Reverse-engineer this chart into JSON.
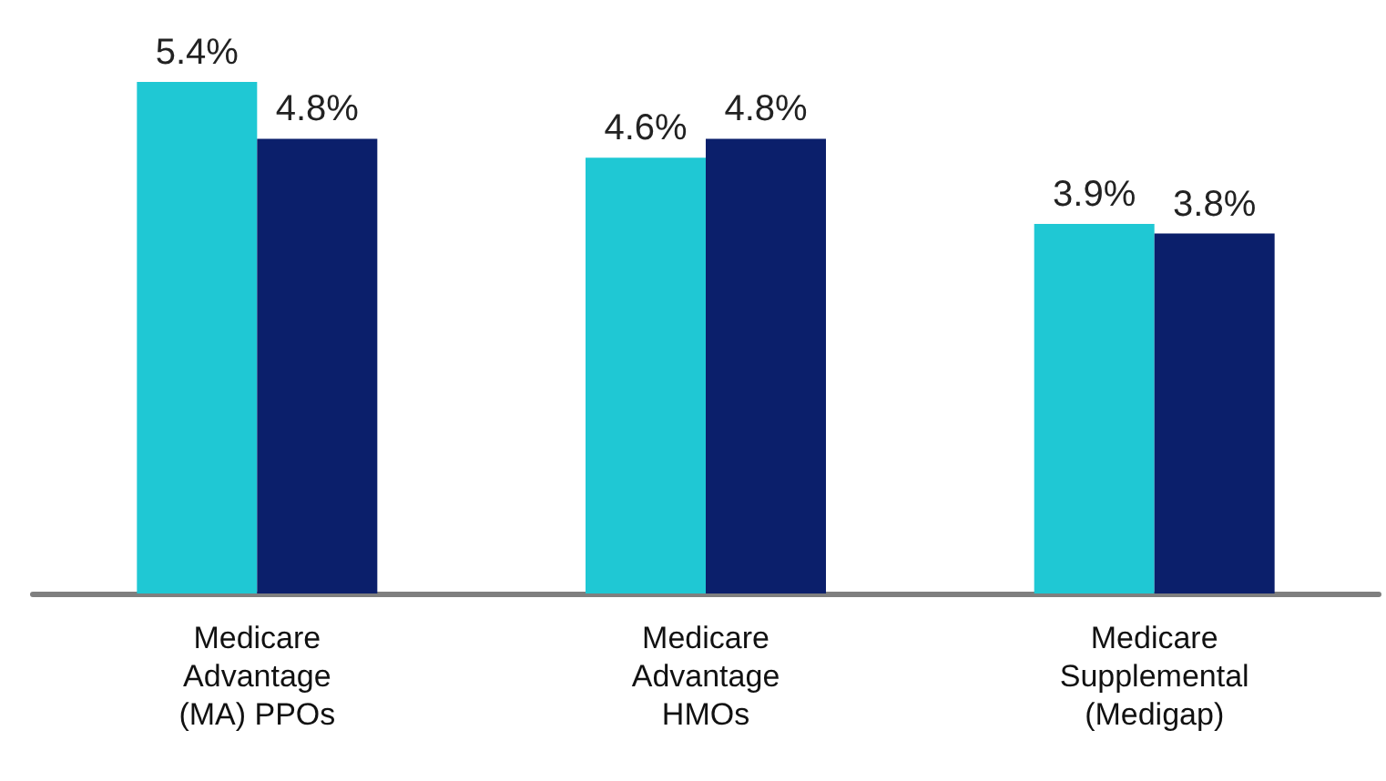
{
  "chart_data": {
    "type": "bar",
    "categories": [
      "Medicare\nAdvantage\n(MA) PPOs",
      "Medicare\nAdvantage\nHMOs",
      "Medicare\nSupplemental\n(Medigap)"
    ],
    "series": [
      {
        "color": "#1fc8d4",
        "values": [
          5.4,
          4.6,
          3.9
        ],
        "value_labels": [
          "5.4%",
          "4.6%",
          "3.9%"
        ]
      },
      {
        "color": "#0b1f6b",
        "values": [
          4.8,
          4.8,
          3.8
        ],
        "value_labels": [
          "4.8%",
          "4.8%",
          "3.8%"
        ]
      }
    ]
  }
}
